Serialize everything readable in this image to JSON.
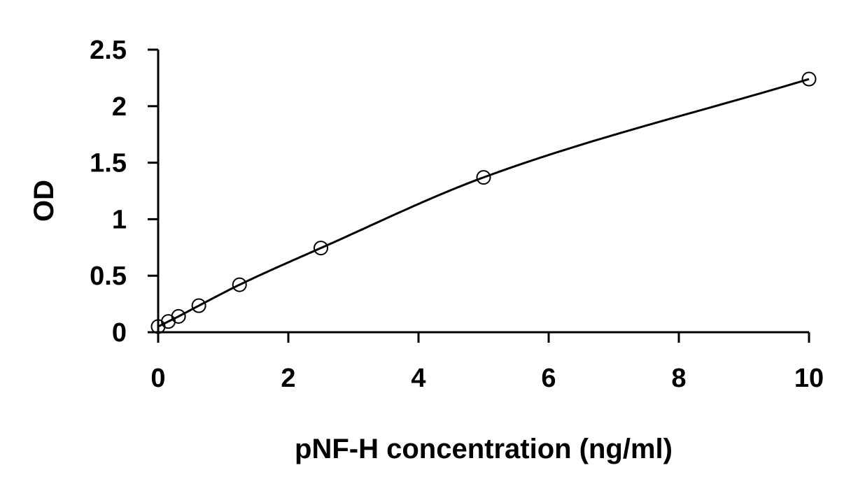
{
  "chart_data": {
    "type": "scatter",
    "title": "",
    "xlabel": "pNF-H concentration (ng/ml)",
    "ylabel": "OD",
    "xlim": [
      0,
      10
    ],
    "ylim": [
      0,
      2.5
    ],
    "x_ticks": [
      0,
      2,
      4,
      6,
      8,
      10
    ],
    "y_ticks": [
      0,
      0.5,
      1,
      1.5,
      2,
      2.5
    ],
    "x_tick_labels": [
      "0",
      "2",
      "4",
      "6",
      "8",
      "10"
    ],
    "y_tick_labels": [
      "0",
      "0.5",
      "1",
      "1.5",
      "2",
      "2.5"
    ],
    "grid": false,
    "legend": "none",
    "colors": {
      "line": "#000000",
      "marker_stroke": "#000000",
      "marker_fill": "#ffffff"
    },
    "series": [
      {
        "x": [
          0,
          0.156,
          0.313,
          0.625,
          1.25,
          2.5,
          5,
          10
        ],
        "y": [
          0.05,
          0.095,
          0.14,
          0.235,
          0.42,
          0.745,
          1.37,
          2.24
        ],
        "marker": "open-circle",
        "fit": "smooth-curve"
      }
    ]
  }
}
